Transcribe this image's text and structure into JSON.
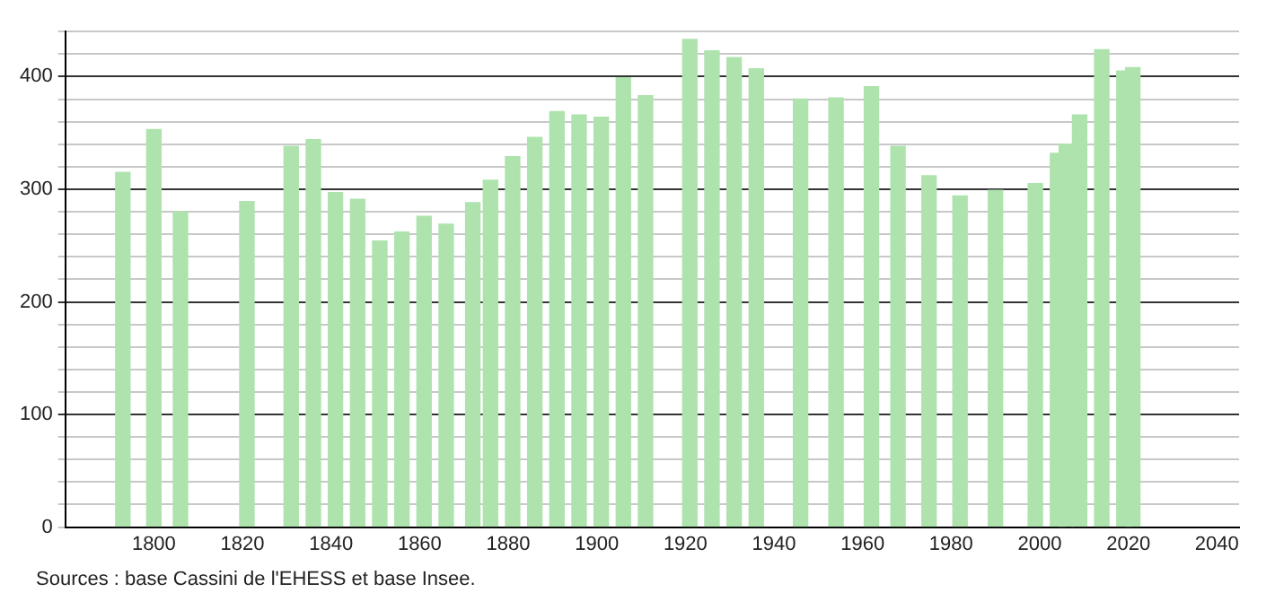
{
  "chart_data": {
    "type": "bar",
    "color": "#aee3ae",
    "x": [
      1793,
      1800,
      1806,
      1821,
      1831,
      1836,
      1841,
      1846,
      1851,
      1856,
      1861,
      1866,
      1872,
      1876,
      1881,
      1886,
      1891,
      1896,
      1901,
      1906,
      1911,
      1921,
      1926,
      1931,
      1936,
      1946,
      1954,
      1962,
      1968,
      1975,
      1982,
      1990,
      1999,
      2004,
      2006,
      2009,
      2014,
      2019,
      2021
    ],
    "values": [
      315,
      353,
      280,
      289,
      338,
      344,
      297,
      291,
      254,
      262,
      276,
      269,
      288,
      308,
      329,
      346,
      369,
      366,
      364,
      399,
      383,
      433,
      423,
      417,
      407,
      380,
      381,
      391,
      338,
      312,
      294,
      299,
      305,
      332,
      340,
      366,
      424,
      405,
      408
    ],
    "xlim": [
      1780,
      2045
    ],
    "xticks": [
      1800,
      1820,
      1840,
      1860,
      1880,
      1900,
      1920,
      1940,
      1960,
      1980,
      2000,
      2020,
      2040
    ],
    "ylim": [
      0,
      440
    ],
    "yticks": [
      0,
      {
        "value": 20,
        "label": null
      },
      {
        "value": 40,
        "label": null
      },
      {
        "value": 60,
        "label": null
      },
      {
        "value": 80,
        "label": null
      },
      100,
      {
        "value": 120,
        "label": null
      },
      {
        "value": 140,
        "label": null
      },
      {
        "value": 160,
        "label": null
      },
      {
        "value": 180,
        "label": null
      },
      200,
      {
        "value": 220,
        "label": null
      },
      {
        "value": 240,
        "label": null
      },
      {
        "value": 260,
        "label": null
      },
      {
        "value": 280,
        "label": null
      },
      300,
      {
        "value": 320,
        "label": null
      },
      {
        "value": 340,
        "label": null
      },
      {
        "value": 360,
        "label": null
      },
      {
        "value": 380,
        "label": null
      },
      400,
      {
        "value": 420,
        "label": null
      },
      {
        "value": 440,
        "label": null
      }
    ],
    "grid": "y",
    "legend": false,
    "annotations": [
      "Sources : base Cassini de l'EHESS et base Insee."
    ]
  }
}
